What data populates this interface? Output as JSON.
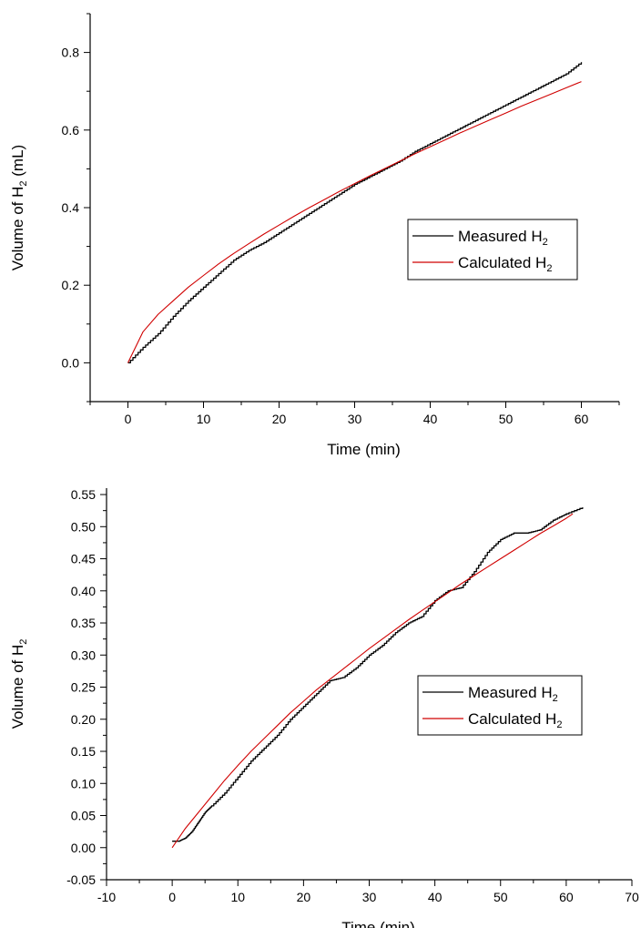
{
  "chart_data": [
    {
      "type": "line",
      "xlabel": "Time (min)",
      "ylabel_main": "Volume of H",
      "ylabel_sub": "2",
      "ylabel_suffix": " (mL)",
      "xlim": [
        -5,
        65
      ],
      "ylim": [
        -0.1,
        0.9
      ],
      "x_ticks": [
        0,
        10,
        20,
        30,
        40,
        50,
        60
      ],
      "x_tick_labels": [
        "0",
        "10",
        "20",
        "30",
        "40",
        "50",
        "60"
      ],
      "y_ticks": [
        0.0,
        0.2,
        0.4,
        0.6,
        0.8
      ],
      "y_tick_labels": [
        "0.0",
        "0.2",
        "0.4",
        "0.6",
        "0.8"
      ],
      "grid": false,
      "legend_position": "right",
      "series": [
        {
          "name": "Measured H",
          "name_sub": "2",
          "color": "#000000",
          "style": "step",
          "x": [
            0,
            2,
            4,
            6,
            8,
            10,
            12,
            14,
            16,
            18,
            20,
            22,
            24,
            26,
            28,
            30,
            32,
            34,
            36,
            38,
            40,
            42,
            44,
            46,
            48,
            50,
            52,
            54,
            56,
            58,
            60
          ],
          "y": [
            0.0,
            0.04,
            0.075,
            0.12,
            0.16,
            0.195,
            0.23,
            0.265,
            0.29,
            0.31,
            0.335,
            0.36,
            0.385,
            0.41,
            0.435,
            0.46,
            0.48,
            0.5,
            0.52,
            0.545,
            0.565,
            0.585,
            0.605,
            0.625,
            0.645,
            0.665,
            0.685,
            0.705,
            0.725,
            0.745,
            0.775
          ]
        },
        {
          "name": "Calculated H",
          "name_sub": "2",
          "color": "#d00000",
          "style": "smooth",
          "x": [
            0,
            2,
            4,
            6,
            8,
            10,
            12,
            14,
            16,
            18,
            20,
            22,
            24,
            26,
            28,
            30,
            32,
            34,
            36,
            38,
            40,
            42,
            44,
            46,
            48,
            50,
            52,
            54,
            56,
            58,
            60
          ],
          "y": [
            0.0,
            0.08,
            0.125,
            0.16,
            0.195,
            0.225,
            0.255,
            0.282,
            0.307,
            0.332,
            0.355,
            0.378,
            0.4,
            0.421,
            0.442,
            0.462,
            0.482,
            0.501,
            0.52,
            0.539,
            0.557,
            0.575,
            0.593,
            0.61,
            0.627,
            0.644,
            0.661,
            0.677,
            0.693,
            0.709,
            0.725
          ]
        }
      ]
    },
    {
      "type": "line",
      "xlabel": "Time (min)",
      "ylabel_main": "Volume of H",
      "ylabel_sub": "2",
      "ylabel_suffix": "",
      "xlim": [
        -10,
        70
      ],
      "ylim": [
        -0.05,
        0.56
      ],
      "x_ticks": [
        -10,
        0,
        10,
        20,
        30,
        40,
        50,
        60,
        70
      ],
      "x_tick_labels": [
        "-10",
        "0",
        "10",
        "20",
        "30",
        "40",
        "50",
        "60",
        "70"
      ],
      "y_ticks": [
        -0.05,
        0.0,
        0.05,
        0.1,
        0.15,
        0.2,
        0.25,
        0.3,
        0.35,
        0.4,
        0.45,
        0.5,
        0.55
      ],
      "y_tick_labels": [
        "-0.05",
        "0.00",
        "0.05",
        "0.10",
        "0.15",
        "0.20",
        "0.25",
        "0.30",
        "0.35",
        "0.40",
        "0.45",
        "0.50",
        "0.55"
      ],
      "grid": false,
      "legend_position": "right",
      "series": [
        {
          "name": "Measured H",
          "name_sub": "2",
          "color": "#000000",
          "style": "step",
          "x": [
            0,
            1,
            2,
            3,
            4,
            5,
            6,
            8,
            10,
            12,
            14,
            16,
            18,
            20,
            22,
            24,
            26,
            28,
            30,
            32,
            34,
            36,
            38,
            40,
            42,
            44,
            46,
            48,
            50,
            52,
            54,
            56,
            58,
            60,
            62.5
          ],
          "y": [
            0.01,
            0.01,
            0.015,
            0.025,
            0.04,
            0.055,
            0.065,
            0.085,
            0.11,
            0.135,
            0.155,
            0.175,
            0.2,
            0.22,
            0.24,
            0.26,
            0.265,
            0.28,
            0.3,
            0.315,
            0.335,
            0.35,
            0.36,
            0.385,
            0.4,
            0.405,
            0.43,
            0.46,
            0.48,
            0.49,
            0.49,
            0.495,
            0.51,
            0.52,
            0.53
          ]
        },
        {
          "name": "Calculated H",
          "name_sub": "2",
          "color": "#d00000",
          "style": "smooth",
          "x": [
            0,
            2,
            4,
            6,
            8,
            10,
            12,
            14,
            16,
            18,
            20,
            22,
            24,
            26,
            28,
            30,
            32,
            34,
            36,
            38,
            40,
            42,
            44,
            46,
            48,
            50,
            52,
            54,
            56,
            58,
            60,
            61
          ],
          "y": [
            0.0,
            0.03,
            0.055,
            0.08,
            0.105,
            0.128,
            0.15,
            0.17,
            0.19,
            0.21,
            0.228,
            0.246,
            0.262,
            0.278,
            0.294,
            0.31,
            0.325,
            0.34,
            0.355,
            0.369,
            0.383,
            0.397,
            0.411,
            0.424,
            0.437,
            0.45,
            0.463,
            0.476,
            0.489,
            0.501,
            0.513,
            0.52
          ]
        }
      ]
    }
  ]
}
